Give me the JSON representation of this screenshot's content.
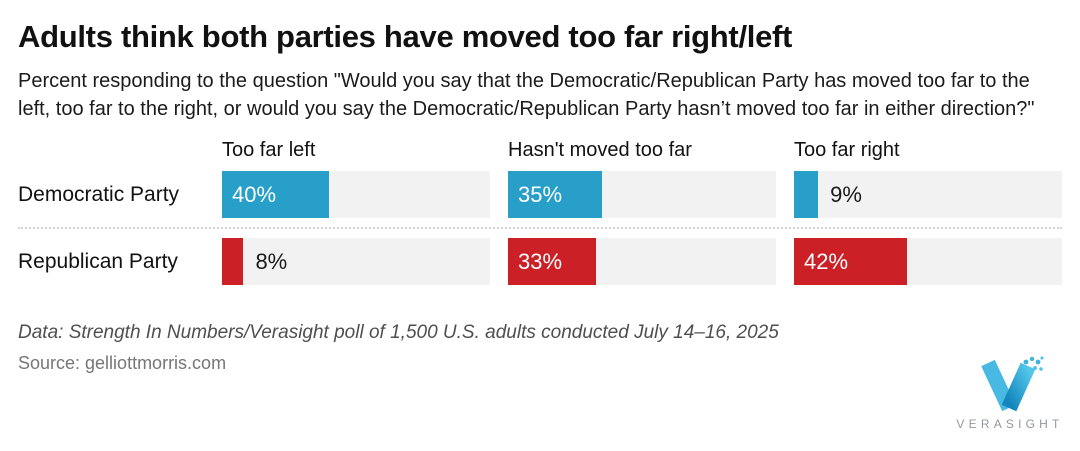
{
  "header": {
    "title": "Adults think both parties have moved too far right/left",
    "subtitle": "Percent responding to the question \"Would you say that the Democratic/Republican Party has moved too far to the left, too far to the right, or would you say the Democratic/Republican Party hasn’t moved too far in either direction?\""
  },
  "chart_data": {
    "type": "bar",
    "orientation": "horizontal",
    "xlim": [
      0,
      100
    ],
    "track_color": "#f2f2f2",
    "columns": [
      "Too far left",
      "Hasn't moved too far",
      "Too far right"
    ],
    "rows": [
      {
        "label": "Democratic Party",
        "color": "#279fc9",
        "values": [
          40,
          35,
          9
        ],
        "value_labels": [
          "40%",
          "35%",
          "9%"
        ]
      },
      {
        "label": "Republican Party",
        "color": "#cb2026",
        "values": [
          8,
          33,
          42
        ],
        "value_labels": [
          "8%",
          "33%",
          "42%"
        ]
      }
    ],
    "inside_label_threshold": 15
  },
  "footer": {
    "data_note": "Data: Strength In Numbers/Verasight poll of 1,500 U.S. adults conducted July 14–16, 2025",
    "source": "Source: gelliottmorris.com"
  },
  "logo": {
    "wordmark": "VERASIGHT",
    "mark_color_left": "#48b9e2",
    "mark_color_right_start": "#1286bd",
    "mark_color_right_end": "#54c6ea"
  }
}
